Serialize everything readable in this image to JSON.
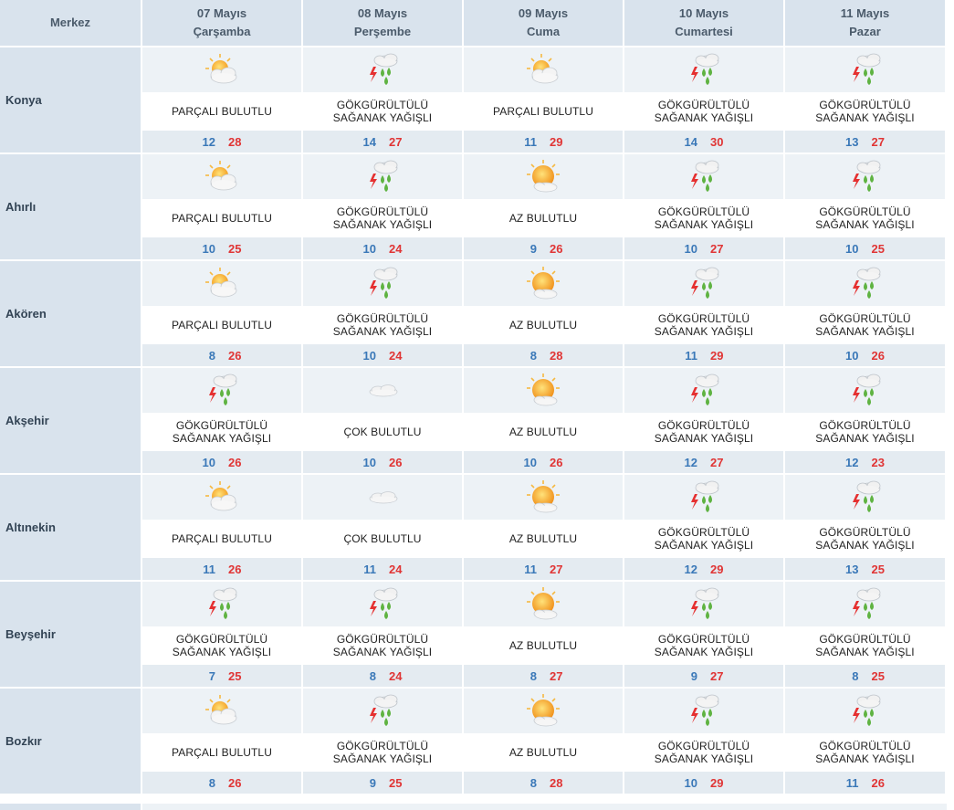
{
  "header": {
    "merkez_label": "Merkez",
    "days": [
      {
        "date": "07 Mayıs",
        "weekday": "Çarşamba"
      },
      {
        "date": "08 Mayıs",
        "weekday": "Perşembe"
      },
      {
        "date": "09 Mayıs",
        "weekday": "Cuma"
      },
      {
        "date": "10 Mayıs",
        "weekday": "Cumartesi"
      },
      {
        "date": "11 Mayıs",
        "weekday": "Pazar"
      }
    ]
  },
  "conditions": {
    "partly_cloudy": {
      "icon": "partly-cloudy-icon",
      "lines": [
        "PARÇALI BULUTLU"
      ]
    },
    "mostly_sunny": {
      "icon": "mostly-sunny-icon",
      "lines": [
        "AZ BULUTLU"
      ]
    },
    "thunder_showers": {
      "icon": "thunder-shower-icon",
      "lines": [
        "GÖKGÜRÜLTÜLÜ",
        "SAĞANAK YAĞIŞLI"
      ]
    },
    "cloudy": {
      "icon": "cloudy-icon",
      "lines": [
        "ÇOK BULUTLU"
      ]
    }
  },
  "colors": {
    "min_temp": "#3a78b8",
    "max_temp": "#e03535",
    "header_bg": "#d9e3ed",
    "icon_row_bg": "#edf2f6",
    "temp_row_bg": "#e4ebf1"
  },
  "cities": [
    {
      "name": "Konya",
      "forecast": [
        {
          "cond": "partly_cloudy",
          "min": "12",
          "max": "28"
        },
        {
          "cond": "thunder_showers",
          "min": "14",
          "max": "27"
        },
        {
          "cond": "partly_cloudy",
          "min": "11",
          "max": "29"
        },
        {
          "cond": "thunder_showers",
          "min": "14",
          "max": "30"
        },
        {
          "cond": "thunder_showers",
          "min": "13",
          "max": "27"
        }
      ]
    },
    {
      "name": "Ahırlı",
      "forecast": [
        {
          "cond": "partly_cloudy",
          "min": "10",
          "max": "25"
        },
        {
          "cond": "thunder_showers",
          "min": "10",
          "max": "24"
        },
        {
          "cond": "mostly_sunny",
          "min": "9",
          "max": "26"
        },
        {
          "cond": "thunder_showers",
          "min": "10",
          "max": "27"
        },
        {
          "cond": "thunder_showers",
          "min": "10",
          "max": "25"
        }
      ]
    },
    {
      "name": "Akören",
      "forecast": [
        {
          "cond": "partly_cloudy",
          "min": "8",
          "max": "26"
        },
        {
          "cond": "thunder_showers",
          "min": "10",
          "max": "24"
        },
        {
          "cond": "mostly_sunny",
          "min": "8",
          "max": "28"
        },
        {
          "cond": "thunder_showers",
          "min": "11",
          "max": "29"
        },
        {
          "cond": "thunder_showers",
          "min": "10",
          "max": "26"
        }
      ]
    },
    {
      "name": "Akşehir",
      "forecast": [
        {
          "cond": "thunder_showers",
          "min": "10",
          "max": "26"
        },
        {
          "cond": "cloudy",
          "min": "10",
          "max": "26"
        },
        {
          "cond": "mostly_sunny",
          "min": "10",
          "max": "26"
        },
        {
          "cond": "thunder_showers",
          "min": "12",
          "max": "27"
        },
        {
          "cond": "thunder_showers",
          "min": "12",
          "max": "23"
        }
      ]
    },
    {
      "name": "Altınekin",
      "forecast": [
        {
          "cond": "partly_cloudy",
          "min": "11",
          "max": "26"
        },
        {
          "cond": "cloudy",
          "min": "11",
          "max": "24"
        },
        {
          "cond": "mostly_sunny",
          "min": "11",
          "max": "27"
        },
        {
          "cond": "thunder_showers",
          "min": "12",
          "max": "29"
        },
        {
          "cond": "thunder_showers",
          "min": "13",
          "max": "25"
        }
      ]
    },
    {
      "name": "Beyşehir",
      "forecast": [
        {
          "cond": "thunder_showers",
          "min": "7",
          "max": "25"
        },
        {
          "cond": "thunder_showers",
          "min": "8",
          "max": "24"
        },
        {
          "cond": "mostly_sunny",
          "min": "8",
          "max": "27"
        },
        {
          "cond": "thunder_showers",
          "min": "9",
          "max": "27"
        },
        {
          "cond": "thunder_showers",
          "min": "8",
          "max": "25"
        }
      ]
    },
    {
      "name": "Bozkır",
      "forecast": [
        {
          "cond": "partly_cloudy",
          "min": "8",
          "max": "26"
        },
        {
          "cond": "thunder_showers",
          "min": "9",
          "max": "25"
        },
        {
          "cond": "mostly_sunny",
          "min": "8",
          "max": "28"
        },
        {
          "cond": "thunder_showers",
          "min": "10",
          "max": "29"
        },
        {
          "cond": "thunder_showers",
          "min": "11",
          "max": "26"
        }
      ]
    }
  ]
}
